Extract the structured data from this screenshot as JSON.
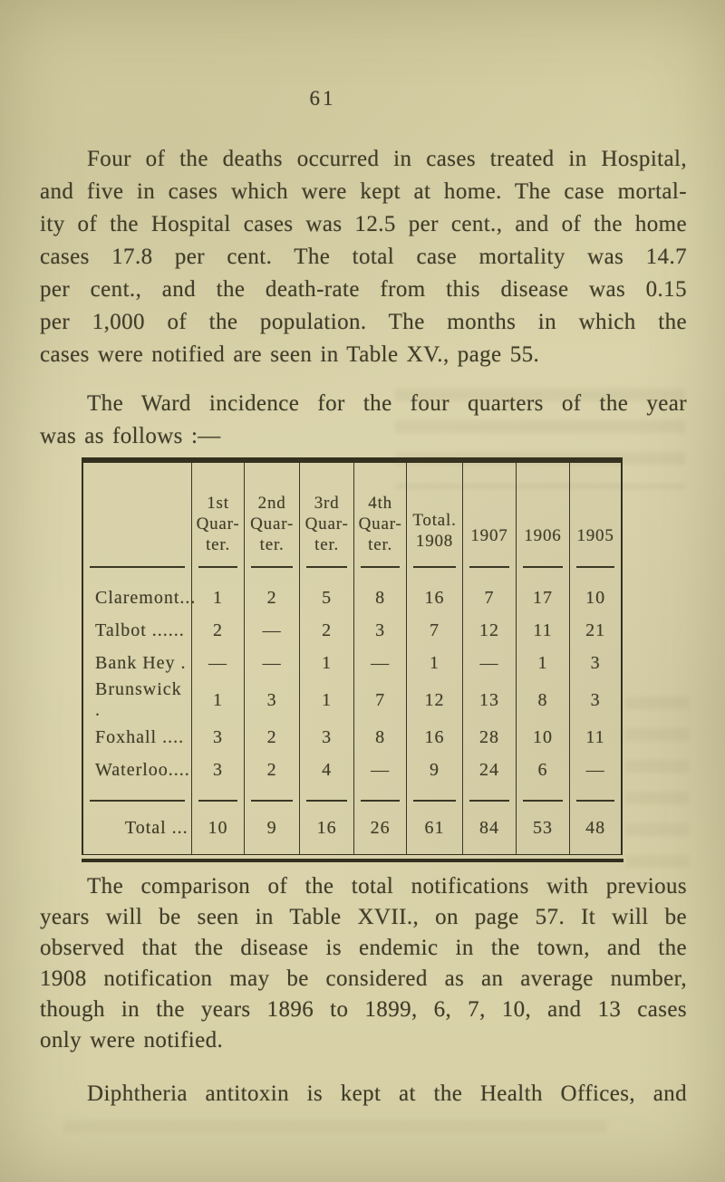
{
  "page": {
    "number": "61"
  },
  "paragraphs": {
    "p1": {
      "lines": [
        "Four of the deaths occurred in cases treated in Hospital,",
        "and five in cases which were kept at home. The case mortal-",
        "ity of the Hospital cases was 12.5 per cent., and of the home",
        "cases 17.8 per cent. The total case mortality was 14.7",
        "per cent., and the death-rate from this disease was 0.15",
        "per 1,000 of the population. The months in which the",
        "cases were notified are seen in Table XV., page 55."
      ]
    },
    "p2": {
      "lines": [
        "The Ward incidence for the four quarters of the year",
        "was as follows :—"
      ]
    },
    "p3": {
      "lines": [
        "The comparison of the total notifications with previous",
        "years will be seen in Table XVII., on page 57. It will be",
        "observed that the disease is endemic in the town, and the",
        "1908 notification may be considered as an average number,",
        "though in the years 1896 to 1899, 6, 7, 10, and 13 cases",
        "only were notified."
      ]
    },
    "p4": {
      "lines": [
        "Diphtheria antitoxin is kept at the Health Offices, and"
      ]
    }
  },
  "table": {
    "headers": [
      "",
      "1st\nQuar-\nter.",
      "2nd\nQuar-\nter.",
      "3rd\nQuar-\nter.",
      "4th\nQuar-\nter.",
      "Total.\n1908",
      "1907",
      "1906",
      "1905"
    ],
    "rows": [
      {
        "label": "Claremont...",
        "values": [
          "1",
          "2",
          "5",
          "8",
          "16",
          "7",
          "17",
          "10"
        ]
      },
      {
        "label": "Talbot ......",
        "values": [
          "2",
          "—",
          "2",
          "3",
          "7",
          "12",
          "11",
          "21"
        ]
      },
      {
        "label": "Bank Hey .",
        "values": [
          "—",
          "—",
          "1",
          "—",
          "1",
          "—",
          "1",
          "3"
        ]
      },
      {
        "label": "Brunswick .",
        "values": [
          "1",
          "3",
          "1",
          "7",
          "12",
          "13",
          "8",
          "3"
        ]
      },
      {
        "label": "Foxhall ....",
        "values": [
          "3",
          "2",
          "3",
          "8",
          "16",
          "28",
          "10",
          "11"
        ]
      },
      {
        "label": "Waterloo....",
        "values": [
          "3",
          "2",
          "4",
          "—",
          "9",
          "24",
          "6",
          "—"
        ]
      }
    ],
    "total_row": {
      "label": "Total ...",
      "values": [
        "10",
        "9",
        "16",
        "26",
        "61",
        "84",
        "53",
        "48"
      ]
    }
  },
  "colors": {
    "paper": "#d8d1a8",
    "ink": "#403c28",
    "rule": "#33301f"
  }
}
